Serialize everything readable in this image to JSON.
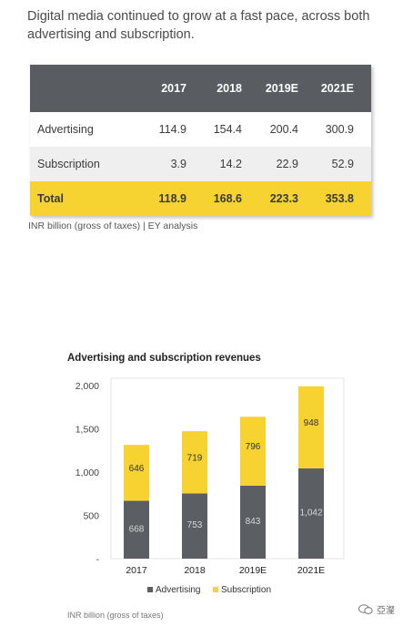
{
  "headline": "Digital media continued to grow at a fast pace, across both advertising and subscription.",
  "table": {
    "columns": [
      "",
      "2017",
      "2018",
      "2019E",
      "2021E"
    ],
    "rows": [
      {
        "label": "Advertising",
        "values": [
          "114.9",
          "154.4",
          "200.4",
          "300.9"
        ]
      },
      {
        "label": "Subscription",
        "values": [
          "3.9",
          "14.2",
          "22.9",
          "52.9"
        ]
      },
      {
        "label": "Total",
        "values": [
          "118.9",
          "168.6",
          "223.3",
          "353.8"
        ]
      }
    ],
    "source": "INR billion (gross of taxes) | EY analysis"
  },
  "chart_data": {
    "type": "bar",
    "stacked": true,
    "title": "Advertising and subscription revenues",
    "categories": [
      "2017",
      "2018",
      "2019E",
      "2021E"
    ],
    "series": [
      {
        "name": "Advertising",
        "values": [
          668,
          753,
          843,
          1042
        ],
        "labels": [
          "668",
          "753",
          "843",
          "1,042"
        ],
        "color": "#5b5e63"
      },
      {
        "name": "Subscription",
        "values": [
          646,
          719,
          796,
          948
        ],
        "labels": [
          "646",
          "719",
          "796",
          "948"
        ],
        "color": "#f6d331"
      }
    ],
    "ylim": [
      0,
      2000
    ],
    "yticks": [
      0,
      500,
      1000,
      1500,
      2000
    ],
    "ytick_labels": [
      "-",
      "500",
      "1,000",
      "1,500",
      "2,000"
    ],
    "legend_position": "bottom",
    "source": "INR billion (gross of taxes)"
  },
  "watermark": "亞瀣"
}
